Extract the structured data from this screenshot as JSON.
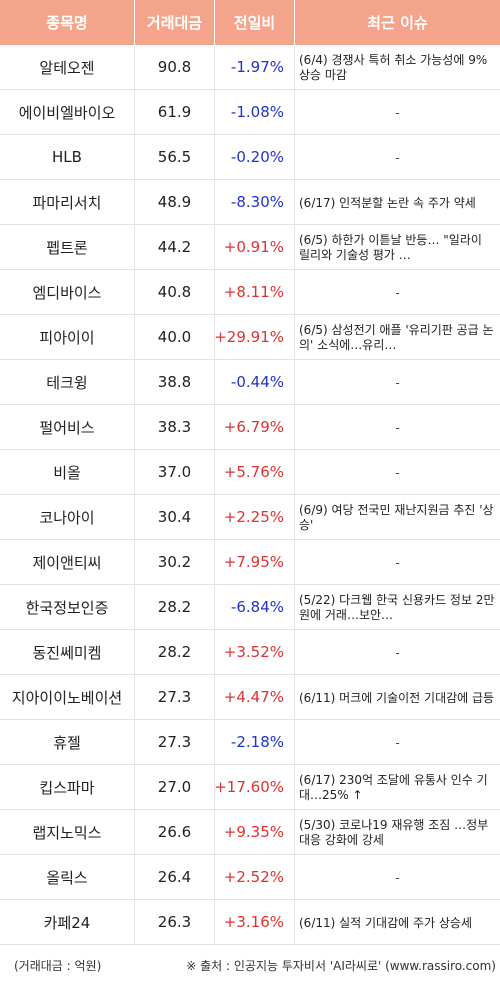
{
  "header": {
    "name": "종목명",
    "volume": "거래대금",
    "change": "전일비",
    "issue": "최근 이슈"
  },
  "colors": {
    "header_bg": "#f4a48a",
    "up": "#e03131",
    "down": "#2233cc"
  },
  "rows": [
    {
      "name": "알테오젠",
      "volume": "90.8",
      "change": "-1.97%",
      "dir": "down",
      "issue": "(6/4) 경쟁사 특허 취소 가능성에 9% 상승 마감"
    },
    {
      "name": "에이비엘바이오",
      "volume": "61.9",
      "change": "-1.08%",
      "dir": "down",
      "issue": "-"
    },
    {
      "name": "HLB",
      "volume": "56.5",
      "change": "-0.20%",
      "dir": "down",
      "issue": "-"
    },
    {
      "name": "파마리서치",
      "volume": "48.9",
      "change": "-8.30%",
      "dir": "down",
      "issue": "(6/17) 인적분할 논란 속 주가 약세"
    },
    {
      "name": "펩트론",
      "volume": "44.2",
      "change": "+0.91%",
      "dir": "up",
      "issue": "(6/5) 하한가 이튿날 반등… \"일라이 릴리와 기술성 평가 …"
    },
    {
      "name": "엠디바이스",
      "volume": "40.8",
      "change": "+8.11%",
      "dir": "up",
      "issue": "-"
    },
    {
      "name": "피아이이",
      "volume": "40.0",
      "change": "+29.91%",
      "dir": "up",
      "issue": "(6/5) 삼성전기 애플 '유리기판 공급 논의' 소식에…유리…"
    },
    {
      "name": "테크윙",
      "volume": "38.8",
      "change": "-0.44%",
      "dir": "down",
      "issue": "-"
    },
    {
      "name": "펄어비스",
      "volume": "38.3",
      "change": "+6.79%",
      "dir": "up",
      "issue": "-"
    },
    {
      "name": "비올",
      "volume": "37.0",
      "change": "+5.76%",
      "dir": "up",
      "issue": "-"
    },
    {
      "name": "코나아이",
      "volume": "30.4",
      "change": "+2.25%",
      "dir": "up",
      "issue": "(6/9) 여당 전국민 재난지원금 추진 '상승'"
    },
    {
      "name": "제이앤티씨",
      "volume": "30.2",
      "change": "+7.95%",
      "dir": "up",
      "issue": "-"
    },
    {
      "name": "한국정보인증",
      "volume": "28.2",
      "change": "-6.84%",
      "dir": "down",
      "issue": "(5/22) 다크웹 한국 신용카드 정보 2만원에 거래…보안…"
    },
    {
      "name": "동진쎄미켐",
      "volume": "28.2",
      "change": "+3.52%",
      "dir": "up",
      "issue": "-"
    },
    {
      "name": "지아이이노베이션",
      "volume": "27.3",
      "change": "+4.47%",
      "dir": "up",
      "issue": "(6/11) 머크에 기술이전 기대감에 급등"
    },
    {
      "name": "휴젤",
      "volume": "27.3",
      "change": "-2.18%",
      "dir": "down",
      "issue": "-"
    },
    {
      "name": "킵스파마",
      "volume": "27.0",
      "change": "+17.60%",
      "dir": "up",
      "issue": "(6/17) 230억 조달에 유통사 인수 기대…25% ↑"
    },
    {
      "name": "랩지노믹스",
      "volume": "26.6",
      "change": "+9.35%",
      "dir": "up",
      "issue": "(5/30) 코로나19 재유행 조짐 …정부 대응 강화에 강세"
    },
    {
      "name": "올릭스",
      "volume": "26.4",
      "change": "+2.52%",
      "dir": "up",
      "issue": "-"
    },
    {
      "name": "카페24",
      "volume": "26.3",
      "change": "+3.16%",
      "dir": "up",
      "issue": "(6/11) 실적 기대감에 주가 상승세"
    }
  ],
  "footer": {
    "unit": "(거래대금 : 억원)",
    "source": "※ 출처 : 인공지능 투자비서 'AI라씨로' (www.rassiro.com)"
  }
}
